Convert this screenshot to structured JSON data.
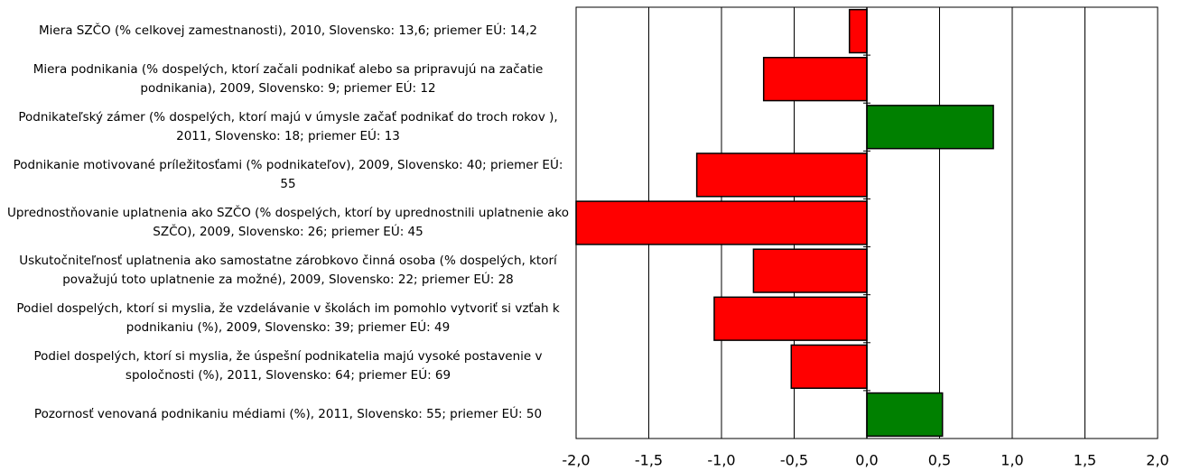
{
  "chart_data": {
    "type": "hbar",
    "categories": [
      "Miera SZČO (% celkovej zamestnanosti), 2010, Slovensko: 13,6; priemer EÚ: 14,2",
      "Miera podnikania (% dospelých, ktorí začali podnikať alebo sa pripravujú na začatie podnikania), 2009, Slovensko: 9; priemer EÚ: 12",
      "Podnikateľský zámer (% dospelých, ktorí majú v úmysle začať podnikať do troch rokov ), 2011, Slovensko: 18; priemer EÚ: 13",
      "Podnikanie motivované príležitosťami (% podnikateľov), 2009, Slovensko: 40; priemer EÚ: 55",
      "Uprednostňovanie uplatnenia ako SZČO (% dospelých, ktorí by uprednostnili uplatnenie ako SZČO), 2009, Slovensko: 26; priemer EÚ: 45",
      "Uskutočniteľnosť uplatnenia ako samostatne zárobkovo činná osoba (% dospelých, ktorí považujú toto uplatnenie za možné), 2009, Slovensko: 22; priemer EÚ: 28",
      "Podiel dospelých, ktorí si myslia, že vzdelávanie v školách im pomohlo vytvoriť si vzťah k podnikaniu (%), 2009, Slovensko: 39; priemer EÚ: 49",
      "Podiel dospelých, ktorí si myslia, že úspešní podnikatelia majú vysoké postavenie v spoločnosti (%), 2011, Slovensko: 64; priemer EÚ: 69",
      "Pozornosť venovaná podnikaniu médiami (%), 2011, Slovensko: 55; priemer EÚ: 50"
    ],
    "values": [
      -0.12,
      -0.71,
      0.87,
      -1.17,
      -2.0,
      -0.78,
      -1.05,
      -0.52,
      0.52
    ],
    "colors": [
      "#ff0000",
      "#ff0000",
      "#008000",
      "#ff0000",
      "#ff0000",
      "#ff0000",
      "#ff0000",
      "#ff0000",
      "#008000"
    ],
    "xlim": [
      -2.0,
      2.0
    ],
    "xticks": [
      {
        "value": -2.0,
        "label": "-2,0"
      },
      {
        "value": -1.5,
        "label": "-1,5"
      },
      {
        "value": -1.0,
        "label": "-1,0"
      },
      {
        "value": -0.5,
        "label": "-0,5"
      },
      {
        "value": 0,
        "label": "0,0"
      },
      {
        "value": 0.5,
        "label": "0,5"
      },
      {
        "value": 1.0,
        "label": "1,0"
      },
      {
        "value": 1.5,
        "label": "1,5"
      },
      {
        "value": 2.0,
        "label": "2,0"
      }
    ],
    "grid": true
  }
}
